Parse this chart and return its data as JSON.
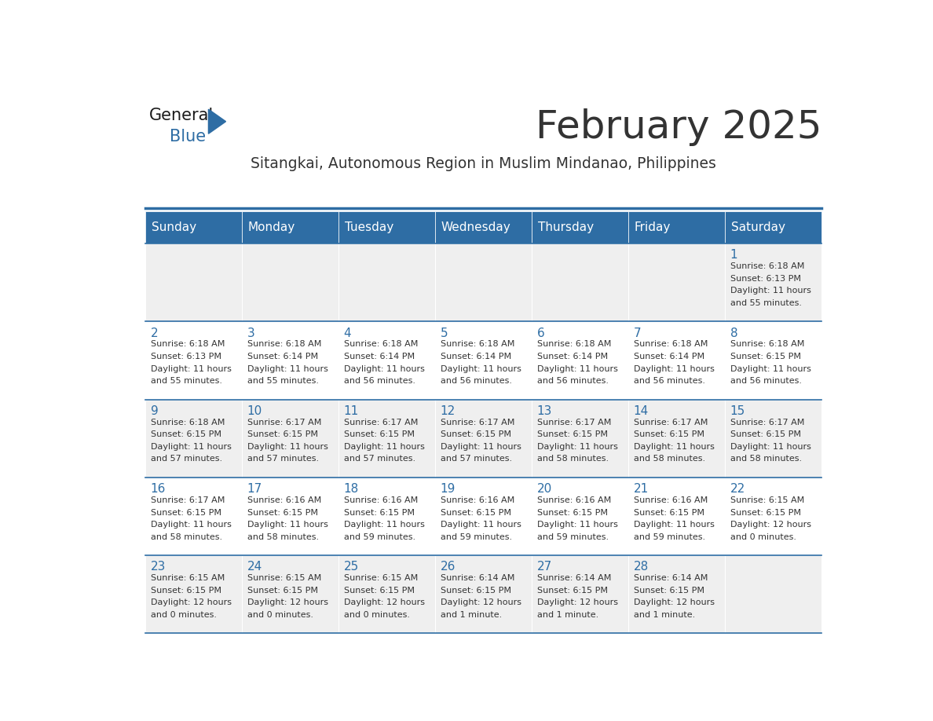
{
  "title": "February 2025",
  "subtitle": "Sitangkai, Autonomous Region in Muslim Mindanao, Philippines",
  "header_color": "#2E6DA4",
  "header_text_color": "#FFFFFF",
  "bg_color": "#FFFFFF",
  "cell_bg_even": "#EFEFEF",
  "cell_bg_odd": "#FFFFFF",
  "day_number_color": "#2E6DA4",
  "text_color": "#333333",
  "days_of_week": [
    "Sunday",
    "Monday",
    "Tuesday",
    "Wednesday",
    "Thursday",
    "Friday",
    "Saturday"
  ],
  "calendar_data": [
    [
      {
        "day": "",
        "sunrise": "",
        "sunset": "",
        "daylight": ""
      },
      {
        "day": "",
        "sunrise": "",
        "sunset": "",
        "daylight": ""
      },
      {
        "day": "",
        "sunrise": "",
        "sunset": "",
        "daylight": ""
      },
      {
        "day": "",
        "sunrise": "",
        "sunset": "",
        "daylight": ""
      },
      {
        "day": "",
        "sunrise": "",
        "sunset": "",
        "daylight": ""
      },
      {
        "day": "",
        "sunrise": "",
        "sunset": "",
        "daylight": ""
      },
      {
        "day": "1",
        "sunrise": "6:18 AM",
        "sunset": "6:13 PM",
        "daylight": "11 hours\nand 55 minutes."
      }
    ],
    [
      {
        "day": "2",
        "sunrise": "6:18 AM",
        "sunset": "6:13 PM",
        "daylight": "11 hours\nand 55 minutes."
      },
      {
        "day": "3",
        "sunrise": "6:18 AM",
        "sunset": "6:14 PM",
        "daylight": "11 hours\nand 55 minutes."
      },
      {
        "day": "4",
        "sunrise": "6:18 AM",
        "sunset": "6:14 PM",
        "daylight": "11 hours\nand 56 minutes."
      },
      {
        "day": "5",
        "sunrise": "6:18 AM",
        "sunset": "6:14 PM",
        "daylight": "11 hours\nand 56 minutes."
      },
      {
        "day": "6",
        "sunrise": "6:18 AM",
        "sunset": "6:14 PM",
        "daylight": "11 hours\nand 56 minutes."
      },
      {
        "day": "7",
        "sunrise": "6:18 AM",
        "sunset": "6:14 PM",
        "daylight": "11 hours\nand 56 minutes."
      },
      {
        "day": "8",
        "sunrise": "6:18 AM",
        "sunset": "6:15 PM",
        "daylight": "11 hours\nand 56 minutes."
      }
    ],
    [
      {
        "day": "9",
        "sunrise": "6:18 AM",
        "sunset": "6:15 PM",
        "daylight": "11 hours\nand 57 minutes."
      },
      {
        "day": "10",
        "sunrise": "6:17 AM",
        "sunset": "6:15 PM",
        "daylight": "11 hours\nand 57 minutes."
      },
      {
        "day": "11",
        "sunrise": "6:17 AM",
        "sunset": "6:15 PM",
        "daylight": "11 hours\nand 57 minutes."
      },
      {
        "day": "12",
        "sunrise": "6:17 AM",
        "sunset": "6:15 PM",
        "daylight": "11 hours\nand 57 minutes."
      },
      {
        "day": "13",
        "sunrise": "6:17 AM",
        "sunset": "6:15 PM",
        "daylight": "11 hours\nand 58 minutes."
      },
      {
        "day": "14",
        "sunrise": "6:17 AM",
        "sunset": "6:15 PM",
        "daylight": "11 hours\nand 58 minutes."
      },
      {
        "day": "15",
        "sunrise": "6:17 AM",
        "sunset": "6:15 PM",
        "daylight": "11 hours\nand 58 minutes."
      }
    ],
    [
      {
        "day": "16",
        "sunrise": "6:17 AM",
        "sunset": "6:15 PM",
        "daylight": "11 hours\nand 58 minutes."
      },
      {
        "day": "17",
        "sunrise": "6:16 AM",
        "sunset": "6:15 PM",
        "daylight": "11 hours\nand 58 minutes."
      },
      {
        "day": "18",
        "sunrise": "6:16 AM",
        "sunset": "6:15 PM",
        "daylight": "11 hours\nand 59 minutes."
      },
      {
        "day": "19",
        "sunrise": "6:16 AM",
        "sunset": "6:15 PM",
        "daylight": "11 hours\nand 59 minutes."
      },
      {
        "day": "20",
        "sunrise": "6:16 AM",
        "sunset": "6:15 PM",
        "daylight": "11 hours\nand 59 minutes."
      },
      {
        "day": "21",
        "sunrise": "6:16 AM",
        "sunset": "6:15 PM",
        "daylight": "11 hours\nand 59 minutes."
      },
      {
        "day": "22",
        "sunrise": "6:15 AM",
        "sunset": "6:15 PM",
        "daylight": "12 hours\nand 0 minutes."
      }
    ],
    [
      {
        "day": "23",
        "sunrise": "6:15 AM",
        "sunset": "6:15 PM",
        "daylight": "12 hours\nand 0 minutes."
      },
      {
        "day": "24",
        "sunrise": "6:15 AM",
        "sunset": "6:15 PM",
        "daylight": "12 hours\nand 0 minutes."
      },
      {
        "day": "25",
        "sunrise": "6:15 AM",
        "sunset": "6:15 PM",
        "daylight": "12 hours\nand 0 minutes."
      },
      {
        "day": "26",
        "sunrise": "6:14 AM",
        "sunset": "6:15 PM",
        "daylight": "12 hours\nand 1 minute."
      },
      {
        "day": "27",
        "sunrise": "6:14 AM",
        "sunset": "6:15 PM",
        "daylight": "12 hours\nand 1 minute."
      },
      {
        "day": "28",
        "sunrise": "6:14 AM",
        "sunset": "6:15 PM",
        "daylight": "12 hours\nand 1 minute."
      },
      {
        "day": "",
        "sunrise": "",
        "sunset": "",
        "daylight": ""
      }
    ]
  ],
  "logo_text_general": "General",
  "logo_text_blue": "Blue",
  "logo_color_general": "#1a1a1a",
  "logo_color_blue": "#2E6DA4",
  "logo_triangle_color": "#2E6DA4"
}
